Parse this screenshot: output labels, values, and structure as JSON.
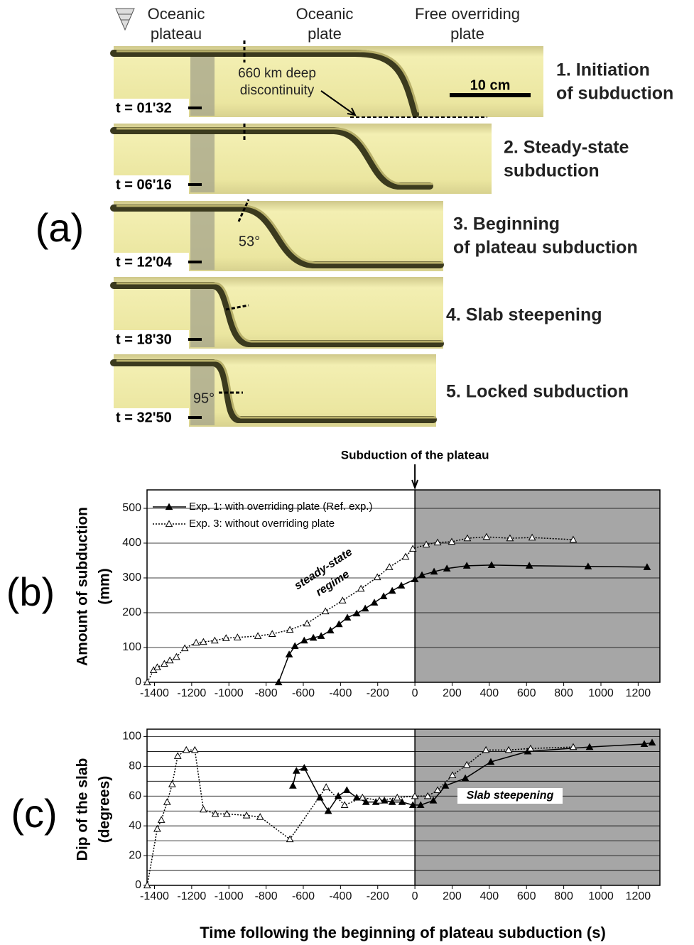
{
  "panel_a": {
    "label": "(a)",
    "headers": [
      [
        "Oceanic",
        "plateau"
      ],
      [
        "Oceanic",
        "plate"
      ],
      [
        "Free overriding",
        "plate"
      ]
    ],
    "discontinuity_label": [
      "660 km deep",
      "discontinuity"
    ],
    "scale_bar": "10 cm",
    "stages": [
      {
        "time": "t = 01'32",
        "caption": [
          "1. Initiation",
          "of subduction"
        ]
      },
      {
        "time": "t = 06'16",
        "caption": [
          "2. Steady-state",
          "subduction"
        ]
      },
      {
        "time": "t = 12'04",
        "caption": [
          "3. Beginning",
          "of plateau subduction"
        ]
      },
      {
        "time": "t = 18'30",
        "caption": [
          "4. Slab steepening"
        ]
      },
      {
        "time": "t = 32'50",
        "caption": [
          "5. Locked subduction"
        ]
      }
    ],
    "angles": [
      "53°",
      "95°"
    ]
  },
  "x_label": "Time following the beginning of plateau subduction (s)",
  "chart_data": [
    {
      "type": "line",
      "panel_label": "(b)",
      "ylabel": [
        "Amount of subduction",
        "(mm)"
      ],
      "annotation_top": "Subduction of the plateau",
      "annotation_top_x": 0,
      "annotation": [
        "steady-state",
        "regime"
      ],
      "xlim": [
        -1440,
        1317
      ],
      "xticks": [
        -1400,
        -1200,
        -1000,
        -800,
        -600,
        -400,
        -200,
        0,
        200,
        400,
        600,
        800,
        1000,
        1200
      ],
      "ylim": [
        0,
        553
      ],
      "yticks": [
        0,
        100,
        200,
        300,
        400,
        500
      ],
      "grid": true,
      "shaded_from_x": 0,
      "shade_color": "#a6a6a6",
      "legend": "top-left",
      "series": [
        {
          "name": "Exp. 1: with overriding plate (Ref. exp.)",
          "color": "#000000",
          "style": "solid",
          "marker": "filled-triangle",
          "x": [
            -733,
            -676,
            -645,
            -595,
            -546,
            -504,
            -454,
            -408,
            -363,
            -313,
            -267,
            -218,
            -168,
            -122,
            -73,
            0,
            38,
            103,
            172,
            279,
            412,
            615,
            931,
            1248
          ],
          "values": [
            0,
            80,
            104,
            120,
            128,
            133,
            149,
            167,
            186,
            198,
            212,
            229,
            247,
            263,
            278,
            296,
            308,
            318,
            327,
            335,
            337,
            335,
            333,
            331
          ]
        },
        {
          "name": "Exp. 3: without overriding plate",
          "color": "#000000",
          "style": "dotted",
          "marker": "open-triangle",
          "x": [
            -1439,
            -1405,
            -1385,
            -1347,
            -1317,
            -1282,
            -1237,
            -1176,
            -1137,
            -1076,
            -1015,
            -954,
            -844,
            -767,
            -672,
            -580,
            -481,
            -389,
            -290,
            -202,
            -137,
            -50,
            -11,
            61,
            122,
            198,
            282,
            385,
            511,
            630,
            851
          ],
          "values": [
            0,
            35,
            43,
            53,
            63,
            73,
            98,
            114,
            116,
            120,
            127,
            129,
            133,
            139,
            151,
            169,
            204,
            235,
            269,
            302,
            331,
            361,
            384,
            396,
            402,
            404,
            414,
            418,
            414,
            416,
            410
          ]
        }
      ]
    },
    {
      "type": "line",
      "panel_label": "(c)",
      "ylabel": [
        "Dip of the slab",
        "(degrees)"
      ],
      "annotation": [
        "Slab steepening"
      ],
      "xlim": [
        -1440,
        1317
      ],
      "xticks": [
        -1400,
        -1200,
        -1000,
        -800,
        -600,
        -400,
        -200,
        0,
        200,
        400,
        600,
        800,
        1000,
        1200
      ],
      "ylim": [
        0,
        105
      ],
      "yticks": [
        0,
        20,
        40,
        60,
        80,
        100
      ],
      "yminorticks": [
        10,
        30,
        50,
        70,
        90
      ],
      "grid": true,
      "shaded_from_x": 0,
      "shade_color": "#a6a6a6",
      "series": [
        {
          "color": "#000000",
          "style": "solid",
          "marker": "filled-triangle",
          "x": [
            -656,
            -637,
            -595,
            -511,
            -466,
            -412,
            -366,
            -313,
            -263,
            -210,
            -164,
            -122,
            -69,
            -11,
            31,
            99,
            164,
            271,
            408,
            607,
            939,
            1233,
            1275
          ],
          "values": [
            67,
            77,
            79,
            59,
            50,
            60,
            64,
            59,
            56,
            56,
            57,
            56,
            56,
            54,
            54,
            57,
            67,
            72,
            83,
            90,
            93,
            95,
            96
          ]
        },
        {
          "color": "#000000",
          "style": "dotted",
          "marker": "open-triangle",
          "x": [
            -1439,
            -1385,
            -1363,
            -1332,
            -1305,
            -1275,
            -1229,
            -1183,
            -1137,
            -1073,
            -1011,
            -905,
            -832,
            -672,
            -477,
            -378,
            -282,
            -191,
            -95,
            0,
            69,
            122,
            202,
            279,
            382,
            504,
            622,
            851
          ],
          "values": [
            0,
            38,
            44,
            56,
            68,
            87,
            91,
            91,
            51,
            48,
            48,
            47,
            46,
            31,
            66,
            54,
            59,
            57,
            59,
            60,
            60,
            64,
            74,
            81,
            91,
            91,
            92,
            93
          ]
        }
      ]
    }
  ]
}
